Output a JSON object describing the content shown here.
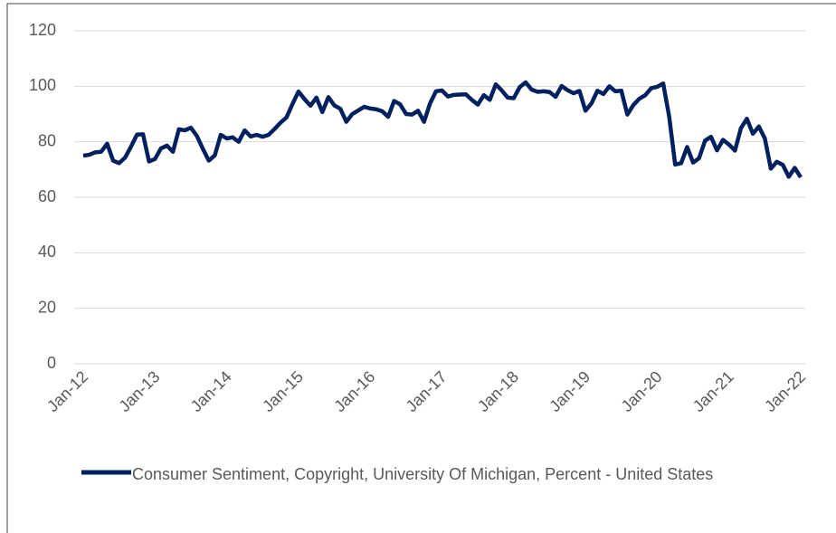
{
  "chart_data": {
    "type": "line",
    "categories": [
      "Jan-12",
      null,
      null,
      null,
      null,
      null,
      null,
      null,
      null,
      null,
      null,
      null,
      "Jan-13",
      null,
      null,
      null,
      null,
      null,
      null,
      null,
      null,
      null,
      null,
      null,
      "Jan-14",
      null,
      null,
      null,
      null,
      null,
      null,
      null,
      null,
      null,
      null,
      null,
      "Jan-15",
      null,
      null,
      null,
      null,
      null,
      null,
      null,
      null,
      null,
      null,
      null,
      "Jan-16",
      null,
      null,
      null,
      null,
      null,
      null,
      null,
      null,
      null,
      null,
      null,
      "Jan-17",
      null,
      null,
      null,
      null,
      null,
      null,
      null,
      null,
      null,
      null,
      null,
      "Jan-18",
      null,
      null,
      null,
      null,
      null,
      null,
      null,
      null,
      null,
      null,
      null,
      "Jan-19",
      null,
      null,
      null,
      null,
      null,
      null,
      null,
      null,
      null,
      null,
      null,
      "Jan-20",
      null,
      null,
      null,
      null,
      null,
      null,
      null,
      null,
      null,
      null,
      null,
      "Jan-21",
      null,
      null,
      null,
      null,
      null,
      null,
      null,
      null,
      null,
      null,
      null,
      "Jan-22"
    ],
    "series": [
      {
        "name": "Consumer Sentiment, Copyright, University Of Michigan, Percent - United States",
        "color": "#002060",
        "values": [
          75.0,
          75.3,
          76.2,
          76.4,
          79.3,
          73.2,
          72.3,
          74.3,
          78.3,
          82.6,
          82.7,
          72.9,
          73.8,
          77.6,
          78.6,
          76.4,
          84.5,
          84.1,
          85.1,
          82.1,
          77.5,
          73.2,
          75.1,
          82.5,
          81.2,
          81.6,
          80.0,
          84.1,
          81.9,
          82.5,
          81.8,
          82.5,
          84.6,
          86.9,
          88.8,
          93.6,
          98.1,
          95.4,
          93.0,
          95.9,
          90.7,
          96.1,
          93.1,
          91.9,
          87.2,
          90.0,
          91.3,
          92.6,
          92.0,
          91.7,
          91.0,
          89.0,
          94.7,
          93.5,
          90.0,
          89.8,
          91.2,
          87.2,
          93.8,
          98.2,
          98.5,
          96.3,
          96.9,
          97.0,
          97.1,
          95.1,
          93.4,
          96.8,
          95.1,
          100.7,
          98.5,
          95.9,
          95.7,
          99.7,
          101.4,
          98.8,
          98.0,
          98.2,
          97.9,
          96.2,
          100.1,
          98.6,
          97.5,
          98.3,
          91.2,
          93.8,
          98.4,
          97.2,
          100.0,
          98.2,
          98.4,
          89.8,
          93.2,
          95.5,
          96.8,
          99.3,
          99.8,
          101.0,
          89.1,
          71.8,
          72.3,
          78.1,
          72.5,
          74.1,
          80.4,
          81.8,
          76.9,
          80.7,
          79.0,
          76.8,
          84.9,
          88.3,
          82.9,
          85.5,
          81.2,
          70.3,
          72.8,
          71.7,
          67.4,
          70.6,
          67.2
        ]
      }
    ],
    "ylim": [
      0,
      120
    ],
    "yticks": [
      0,
      20,
      40,
      60,
      80,
      100,
      120
    ],
    "grid": true,
    "legend": "bottom"
  }
}
